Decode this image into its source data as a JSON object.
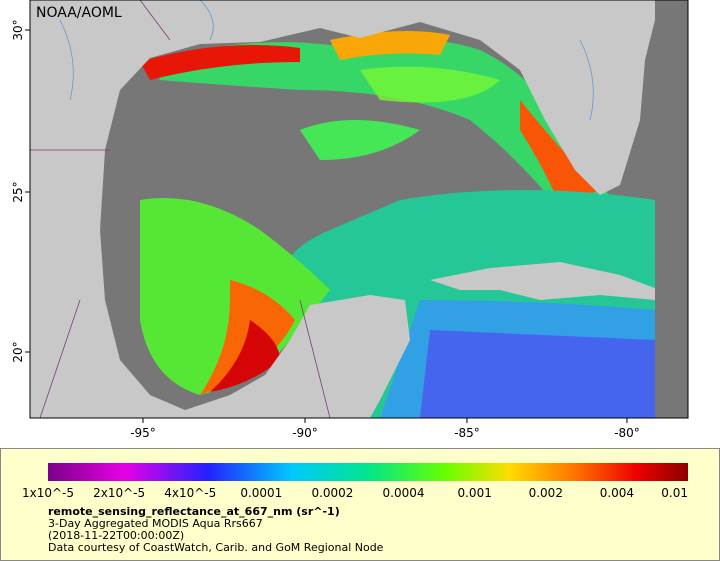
{
  "header": {
    "credit": "NOAA/AOML"
  },
  "axes": {
    "longitude_labels": [
      "-95°",
      "-90°",
      "-85°",
      "-80°"
    ],
    "latitude_labels": [
      "30°",
      "25°",
      "20°"
    ]
  },
  "colorbar": {
    "labels": [
      "1x10^-5",
      "2x10^-5",
      "4x10^-5",
      "0.0001",
      "0.0002",
      "0.0004",
      "0.001",
      "0.002",
      "0.004",
      "0.01"
    ]
  },
  "legend": {
    "variable": "remote_sensing_reflectance_at_667_nm (sr^-1)",
    "lines": [
      "3-Day Aggregated MODIS Aqua Rrs667",
      "(2018-11-22T00:00:00Z)",
      "Data courtesy of CoastWatch, Carib. and GoM Regional Node"
    ]
  }
}
